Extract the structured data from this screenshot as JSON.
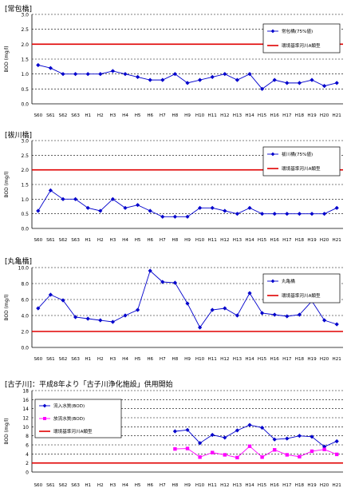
{
  "chart_data": [
    {
      "type": "line",
      "title": "[常包橋]",
      "ylabel": "BOD (mg/l)",
      "xlabel": "",
      "ylim": [
        0,
        3.0
      ],
      "yticks": [
        "0.0",
        "0.5",
        "1.0",
        "1.5",
        "2.0",
        "2.5",
        "3.0"
      ],
      "ytick_values": [
        0,
        0.5,
        1.0,
        1.5,
        2.0,
        2.5,
        3.0
      ],
      "grid": true,
      "legend_position": "top-right",
      "categories": [
        "S60",
        "S61",
        "S62",
        "S63",
        "H1",
        "H2",
        "H3",
        "H4",
        "H5",
        "H6",
        "H7",
        "H8",
        "H9",
        "H10",
        "H11",
        "H12",
        "H13",
        "H14",
        "H15",
        "H16",
        "H17",
        "H18",
        "H19",
        "H20",
        "H21"
      ],
      "series": [
        {
          "name": "常包橋(75%値)",
          "color": "#0000cc",
          "marker": "diamond",
          "values": [
            1.3,
            1.2,
            1.0,
            1.0,
            1.0,
            1.0,
            1.1,
            1.0,
            0.9,
            0.8,
            0.8,
            1.0,
            0.7,
            0.8,
            0.9,
            1.0,
            0.8,
            1.0,
            0.5,
            0.8,
            0.7,
            0.7,
            0.8,
            0.6,
            0.7
          ]
        }
      ],
      "reference": {
        "name": "環境基準河川A類型",
        "value": 2.0,
        "color": "#e00000"
      }
    },
    {
      "type": "line",
      "title": "[祓川橋]",
      "ylabel": "BOD (mg/l)",
      "xlabel": "",
      "ylim": [
        0,
        3.0
      ],
      "yticks": [
        "0.0",
        "0.5",
        "1.0",
        "1.5",
        "2.0",
        "2.5",
        "3.0"
      ],
      "ytick_values": [
        0,
        0.5,
        1.0,
        1.5,
        2.0,
        2.5,
        3.0
      ],
      "grid": true,
      "legend_position": "top-right",
      "categories": [
        "S60",
        "S61",
        "S62",
        "S63",
        "H1",
        "H2",
        "H3",
        "H4",
        "H5",
        "H6",
        "H7",
        "H8",
        "H9",
        "H10",
        "H11",
        "H12",
        "H13",
        "H14",
        "H15",
        "H16",
        "H17",
        "H18",
        "H19",
        "H20",
        "H21"
      ],
      "series": [
        {
          "name": "祓川橋(75%値)",
          "color": "#0000cc",
          "marker": "diamond",
          "values": [
            0.6,
            1.3,
            1.0,
            1.0,
            0.7,
            0.6,
            1.0,
            0.7,
            0.8,
            0.6,
            0.4,
            0.4,
            0.4,
            0.7,
            0.7,
            0.6,
            0.5,
            0.7,
            0.5,
            0.5,
            0.5,
            0.5,
            0.5,
            0.5,
            0.7
          ]
        }
      ],
      "reference": {
        "name": "環境基準河川A類型",
        "value": 2.0,
        "color": "#e00000"
      }
    },
    {
      "type": "line",
      "title": "[丸亀橋]",
      "ylabel": "BOD (mg/l)",
      "xlabel": "",
      "ylim": [
        0,
        10.0
      ],
      "yticks": [
        "0.0",
        "2.0",
        "4.0",
        "6.0",
        "8.0",
        "10.0"
      ],
      "ytick_values": [
        0,
        2,
        4,
        6,
        8,
        10
      ],
      "grid": true,
      "legend_position": "top-right",
      "categories": [
        "S60",
        "S61",
        "S62",
        "S63",
        "H1",
        "H2",
        "H3",
        "H4",
        "H5",
        "H6",
        "H7",
        "H8",
        "H9",
        "H10",
        "H11",
        "H12",
        "H13",
        "H14",
        "H15",
        "H16",
        "H17",
        "H18",
        "H19",
        "H20",
        "H21"
      ],
      "series": [
        {
          "name": "丸亀橋",
          "color": "#0000cc",
          "marker": "diamond",
          "values": [
            4.9,
            6.6,
            5.9,
            3.8,
            3.6,
            3.4,
            3.2,
            4.0,
            4.7,
            9.6,
            8.2,
            8.1,
            5.5,
            2.5,
            4.7,
            4.9,
            4.0,
            6.8,
            4.3,
            4.1,
            3.9,
            4.1,
            5.8,
            3.4,
            2.9
          ]
        }
      ],
      "reference": {
        "name": "環境基準河川A類型",
        "value": 2.0,
        "color": "#e00000"
      }
    },
    {
      "type": "line",
      "title": "[古子川]：平成8年より「古子川浄化施設」供用開始",
      "ylabel": "BOD (mg/l)",
      "xlabel": "",
      "ylim": [
        0,
        18
      ],
      "yticks": [
        "0",
        "2",
        "4",
        "6",
        "8",
        "10",
        "12",
        "14",
        "16",
        "18"
      ],
      "ytick_values": [
        0,
        2,
        4,
        6,
        8,
        10,
        12,
        14,
        16,
        18
      ],
      "grid": true,
      "legend_position": "top-left",
      "categories": [
        "S60",
        "S61",
        "S62",
        "S63",
        "H1",
        "H2",
        "H3",
        "H4",
        "H5",
        "H6",
        "H7",
        "H8",
        "H9",
        "H10",
        "H11",
        "H12",
        "H13",
        "H14",
        "H15",
        "H16",
        "H17",
        "H18",
        "H19",
        "H20",
        "H21"
      ],
      "series": [
        {
          "name": "流入水質(BOD)",
          "color": "#0000cc",
          "marker": "diamond",
          "values": [
            null,
            null,
            null,
            null,
            null,
            null,
            null,
            null,
            null,
            null,
            null,
            9.0,
            9.3,
            6.4,
            8.2,
            7.6,
            9.2,
            10.4,
            9.8,
            7.2,
            7.4,
            8.0,
            7.8,
            5.6,
            6.8
          ]
        },
        {
          "name": "放流水質(BOD)",
          "color": "#ff00ff",
          "marker": "square",
          "values": [
            null,
            null,
            null,
            null,
            null,
            null,
            null,
            null,
            null,
            null,
            null,
            5.1,
            5.2,
            3.3,
            4.3,
            3.8,
            3.2,
            5.7,
            3.3,
            4.9,
            3.8,
            3.4,
            4.6,
            5.0,
            3.9
          ]
        }
      ],
      "reference": {
        "name": "環境基準河川A類型",
        "value": 2.0,
        "color": "#e00000"
      }
    }
  ]
}
